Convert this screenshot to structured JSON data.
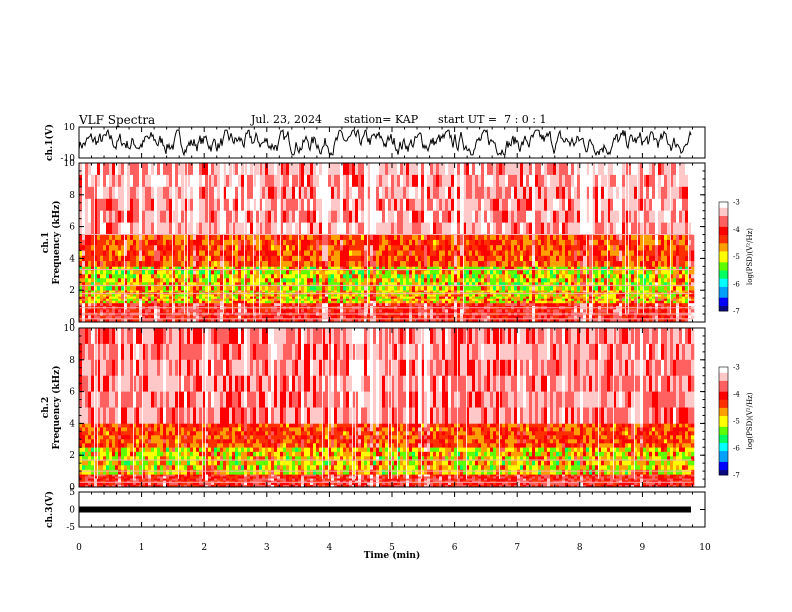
{
  "header": {
    "title": "VLF Spectra",
    "date": "Jul. 23, 2024",
    "station": "station= KAP",
    "start_ut": "start UT =  7 : 0 : 1"
  },
  "colors": {
    "spectrogram_scale": [
      "#0a0a80",
      "#0000ff",
      "#00a0ff",
      "#00ffff",
      "#00ff60",
      "#60ff00",
      "#ffff00",
      "#ffa000",
      "#ff3000",
      "#ff0000",
      "#ff6060",
      "#ffc8c8",
      "#ffffff"
    ],
    "trace": "#000000"
  },
  "chart_data": [
    {
      "id": "ch1-waveform",
      "type": "line",
      "ylabel": "ch.1(V)",
      "ylim": [
        -10,
        10
      ],
      "yticks": [
        "10",
        "-10"
      ],
      "xlim": [
        0,
        10
      ],
      "description_values": "noisy waveform fluctuating between about -7 and +8 V"
    },
    {
      "id": "ch1-spectrogram",
      "type": "heatmap",
      "ylabel": "ch.1\nFrequency (kHz)",
      "ylabel_lines": [
        "ch.1",
        "Frequency (kHz)"
      ],
      "ylim": [
        0,
        10
      ],
      "yticks": [
        "0",
        "2",
        "4",
        "6",
        "8",
        "10"
      ],
      "xlim": [
        0,
        10
      ],
      "data_end_min": 9.8,
      "colorbar": {
        "label": "log(PSD)(V²/Hz)",
        "range": [
          -7,
          -3
        ],
        "ticks": [
          "-3",
          "-4",
          "-5",
          "-6",
          "-7"
        ]
      },
      "bands": [
        {
          "from_khz": 0.0,
          "to_khz": 1.2,
          "log_psd": -4.0
        },
        {
          "from_khz": 1.2,
          "to_khz": 2.0,
          "log_psd": -5.0
        },
        {
          "from_khz": 2.0,
          "to_khz": 3.5,
          "log_psd": -5.2
        },
        {
          "from_khz": 3.5,
          "to_khz": 5.5,
          "log_psd": -4.4
        },
        {
          "from_khz": 5.5,
          "to_khz": 10.0,
          "log_psd": -3.5
        }
      ],
      "lines_khz": [
        0.2,
        0.5,
        0.9,
        1.8,
        2.3,
        3.3,
        5.5
      ]
    },
    {
      "id": "ch2-spectrogram",
      "type": "heatmap",
      "ylabel": "ch.2\nFrequency (kHz)",
      "ylabel_lines": [
        "ch.2",
        "Frequency (kHz)"
      ],
      "ylim": [
        0,
        10
      ],
      "yticks": [
        "0",
        "2",
        "4",
        "6",
        "8",
        "10"
      ],
      "xlim": [
        0,
        10
      ],
      "data_end_min": 9.8,
      "colorbar": {
        "label": "log(PSD)(V²/Hz)",
        "range": [
          -7,
          -3
        ],
        "ticks": [
          "-3",
          "-4",
          "-5",
          "-6",
          "-7"
        ]
      },
      "bands": [
        {
          "from_khz": 0.0,
          "to_khz": 0.8,
          "log_psd": -4.0
        },
        {
          "from_khz": 0.8,
          "to_khz": 2.5,
          "log_psd": -5.1
        },
        {
          "from_khz": 2.5,
          "to_khz": 4.0,
          "log_psd": -4.4
        },
        {
          "from_khz": 4.0,
          "to_khz": 10.0,
          "log_psd": -3.6
        }
      ],
      "lines_khz": [
        0.3,
        1.0,
        1.7
      ]
    },
    {
      "id": "ch3-waveform",
      "type": "line",
      "ylabel": "ch.3(V)",
      "ylim": [
        -5,
        5
      ],
      "yticks": [
        "5",
        "0",
        "-5"
      ],
      "xlim": [
        0,
        10
      ],
      "level_v": 0,
      "description_values": "thick flat trace near 0 V"
    }
  ],
  "x_axis": {
    "label": "Time (min)",
    "ticks": [
      "0",
      "1",
      "2",
      "3",
      "4",
      "5",
      "6",
      "7",
      "8",
      "9",
      "10"
    ]
  }
}
